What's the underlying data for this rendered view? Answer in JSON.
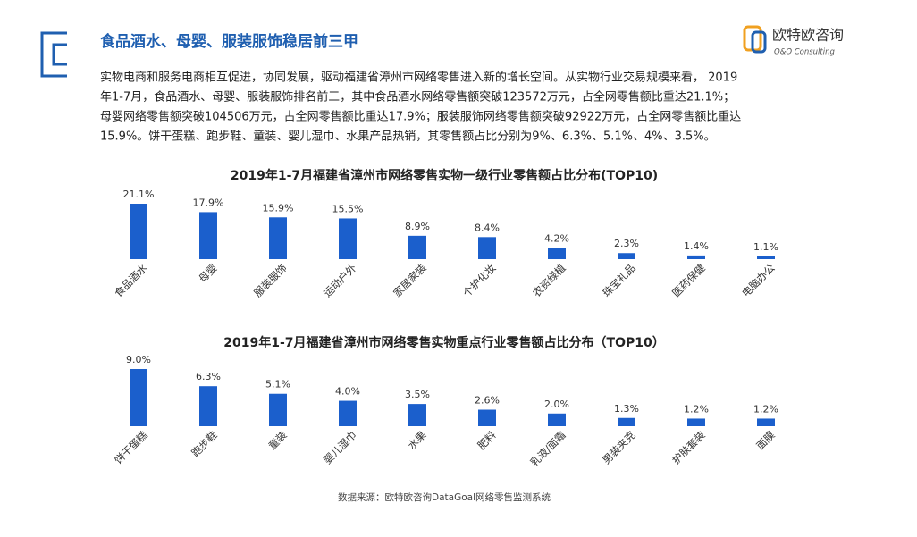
{
  "header": {
    "title": "食品酒水、母婴、服装服饰稳居前三甲",
    "logo_name": "欧特欧咨询",
    "logo_subtitle": "O&O Consulting"
  },
  "paragraph": [
    "实物电商和服务电商相互促进，协同发展，驱动福建省漳州市网络零售进入新的增长空间。从实物行业交易规模来看， 2019",
    "年1-7月，食品酒水、母婴、服装服饰排名前三，其中食品酒水网络零售额突破123572万元，占全网零售额比重达21.1%；",
    "母婴网络零售额突破104506万元，占全网零售额比重达17.9%；服装服饰网络零售额突破92922万元，占全网零售额比重达",
    "15.9%。饼干蛋糕、跑步鞋、童装、婴儿湿巾、水果产品热销，其零售额占比分别为9%、6.3%、5.1%、4%、3.5%。"
  ],
  "chart_data": [
    {
      "type": "bar",
      "title": "2019年1-7月福建省漳州市网络零售实物一级行业零售额占比分布(TOP10)",
      "categories": [
        "食品酒水",
        "母婴",
        "服装服饰",
        "运动户外",
        "家居家装",
        "个护化妆",
        "农资绿植",
        "珠宝礼品",
        "医药保健",
        "电脑办公"
      ],
      "values": [
        21.1,
        17.9,
        15.9,
        15.5,
        8.9,
        8.4,
        4.2,
        2.3,
        1.4,
        1.1
      ],
      "value_labels": [
        "21.1%",
        "17.9%",
        "15.9%",
        "15.5%",
        "8.9%",
        "8.4%",
        "4.2%",
        "2.3%",
        "1.4%",
        "1.1%"
      ],
      "color": "#1b5fcc"
    },
    {
      "type": "bar",
      "title": "2019年1-7月福建省漳州市网络零售实物重点行业零售额占比分布（TOP10）",
      "categories": [
        "饼干蛋糕",
        "跑步鞋",
        "童装",
        "婴儿湿巾",
        "水果",
        "肥料",
        "乳液/面霜",
        "男装夹克",
        "护肤套装",
        "面膜"
      ],
      "values": [
        9.0,
        6.3,
        5.1,
        4.0,
        3.5,
        2.6,
        2.0,
        1.3,
        1.2,
        1.2
      ],
      "value_labels": [
        "9.0%",
        "6.3%",
        "5.1%",
        "4.0%",
        "3.5%",
        "2.6%",
        "2.0%",
        "1.3%",
        "1.2%",
        "1.2%"
      ],
      "color": "#1b5fcc"
    }
  ],
  "source": "数据来源：欧特欧咨询DataGoal网络零售监测系统"
}
